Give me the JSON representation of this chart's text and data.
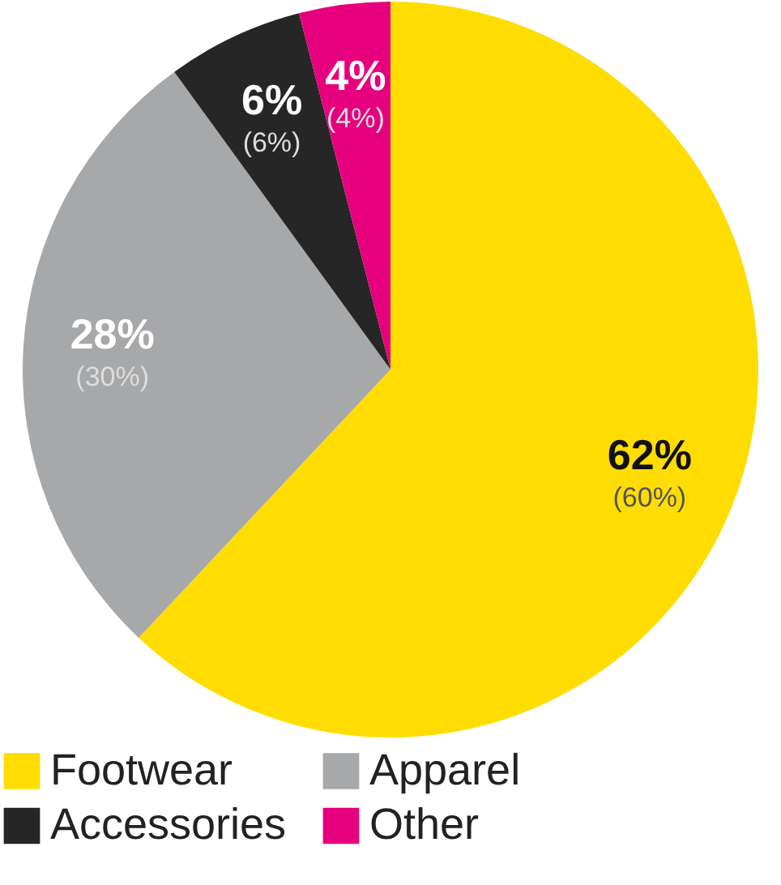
{
  "chart_data": {
    "type": "pie",
    "categories": [
      "Footwear",
      "Apparel",
      "Accessories",
      "Other"
    ],
    "values": [
      62,
      28,
      6,
      4
    ],
    "colors": [
      "#ffdd00",
      "#a7a8aa",
      "#262626",
      "#e6007e"
    ],
    "value_labels": [
      "62%",
      "28%",
      "6%",
      "4%"
    ],
    "annotations": [
      {
        "text": "(60%)",
        "x": "Footwear"
      },
      {
        "text": "(30%)",
        "x": "Apparel"
      },
      {
        "text": "(6%)",
        "x": "Accessories"
      },
      {
        "text": "(4%)",
        "x": "Other"
      }
    ],
    "legend": "bottom"
  }
}
